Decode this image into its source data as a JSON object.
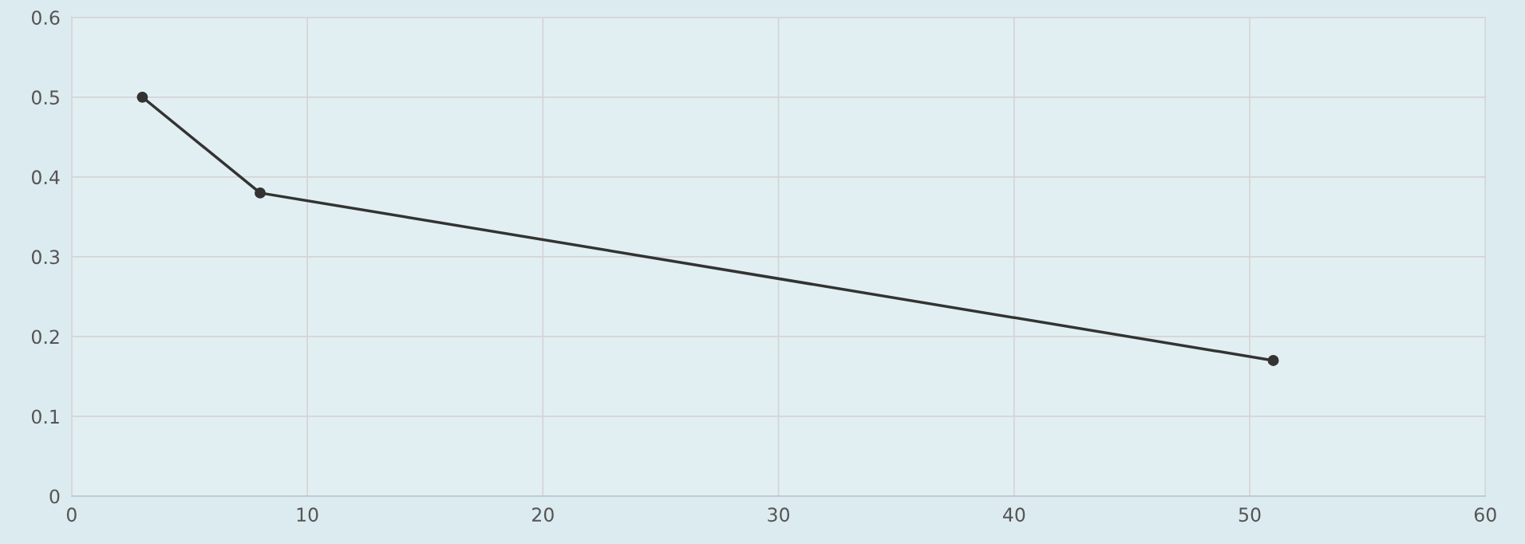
{
  "chart_data": {
    "type": "line",
    "x": [
      3,
      8,
      51
    ],
    "series": [
      {
        "color": "#333333",
        "values": [
          0.5,
          0.38,
          0.17
        ]
      }
    ],
    "xlim": [
      0,
      60
    ],
    "xticks": [
      0,
      10,
      20,
      30,
      40,
      50,
      60
    ],
    "ylim": [
      0,
      0.6
    ],
    "yticks": [
      0,
      0.1,
      0.2,
      0.3,
      0.4,
      0.5,
      0.6
    ],
    "grid": true,
    "marker": "circle",
    "line_style": "solid"
  }
}
